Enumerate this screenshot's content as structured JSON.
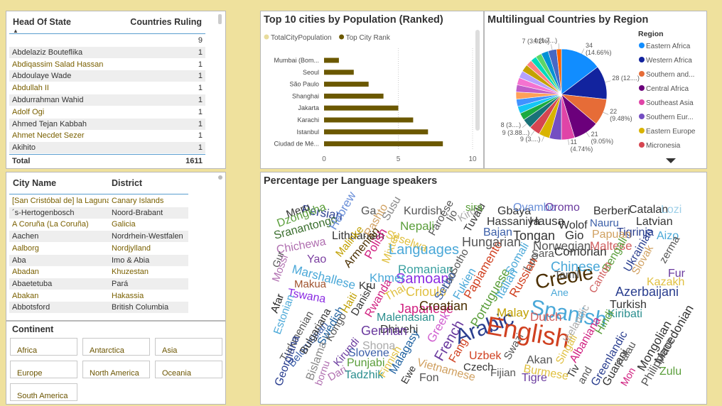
{
  "head_of_state_table": {
    "columns": [
      "Head Of State",
      "Countries Ruling"
    ],
    "rows": [
      [
        null,
        9
      ],
      [
        "Abdelaziz Bouteflika",
        1
      ],
      [
        "Abdiqassim Salad Hassan",
        1
      ],
      [
        "Abdoulaye Wade",
        1
      ],
      [
        "Abdullah II",
        1
      ],
      [
        "Abdurrahman Wahid",
        1
      ],
      [
        "Adolf Ogi",
        1
      ],
      [
        "Ahmed Tejan Kabbah",
        1
      ],
      [
        "Ahmet Necdet Sezer",
        1
      ],
      [
        "Akihito",
        1
      ]
    ],
    "total": [
      "Total",
      1611
    ]
  },
  "city_table": {
    "columns": [
      "City Name",
      "District"
    ],
    "rows": [
      [
        "[San Cristóbal de] la Laguna",
        "Canary Islands"
      ],
      [
        "´s-Hertogenbosch",
        "Noord-Brabant"
      ],
      [
        "A Coruña (La Coruña)",
        "Galicia"
      ],
      [
        "Aachen",
        "Nordrhein-Westfalen"
      ],
      [
        "Aalborg",
        "Nordjylland"
      ],
      [
        "Aba",
        "Imo & Abia"
      ],
      [
        "Abadan",
        "Khuzestan"
      ],
      [
        "Abaetetuba",
        "Pará"
      ],
      [
        "Abakan",
        "Hakassia"
      ],
      [
        "Abbotsford",
        "British Columbia"
      ]
    ]
  },
  "continent_slicer": {
    "title": "Continent",
    "options": [
      "Africa",
      "Antarctica",
      "Asia",
      "Europe",
      "North America",
      "Oceania",
      "South America"
    ]
  },
  "chart_data": [
    {
      "type": "bar",
      "orientation": "horizontal",
      "title": "Top 10 cities by Population (Ranked)",
      "categories": [
        "Mumbai (Bom...",
        "Seoul",
        "São Paulo",
        "Shanghai",
        "Jakarta",
        "Karachi",
        "Istanbul",
        "Ciudad de Mé..."
      ],
      "series": [
        {
          "name": "TotalCityPopulation",
          "color": "#e8dc9c",
          "values": [
            null,
            null,
            null,
            null,
            null,
            null,
            null,
            null
          ]
        },
        {
          "name": "Top City Rank",
          "color": "#6b5800",
          "values": [
            1,
            2,
            3,
            4,
            5,
            6,
            7,
            8
          ]
        }
      ],
      "xlim": [
        0,
        10
      ],
      "xticks": [
        0,
        5,
        10
      ],
      "grid": true
    },
    {
      "type": "pie",
      "title": "Multilingual Countries by Region",
      "legend_title": "Region",
      "categories": [
        "Eastern Africa",
        "Western Africa",
        "Southern and...",
        "Central Africa",
        "Southeast Asia",
        "Southern Eur...",
        "Eastern Europe",
        "Micronesia",
        null,
        null,
        null,
        null,
        null,
        null,
        null,
        null,
        null,
        null,
        null,
        null,
        null,
        null,
        null
      ],
      "values": [
        34,
        28,
        22,
        21,
        11,
        10,
        9,
        9,
        8,
        6,
        6,
        6,
        6,
        6,
        6,
        6,
        6,
        5,
        5,
        5,
        6,
        7,
        4
      ],
      "value_labels": [
        "34 (14.66%)",
        "28 (12....)",
        "22 (9.48%)",
        "21 (9.05%)",
        "11 (4.74%)",
        null,
        "9 (3....)",
        "9 (3.88...)",
        "8 (3....)",
        null,
        null,
        null,
        null,
        null,
        null,
        null,
        null,
        null,
        null,
        null,
        null,
        "7 (3.02%)",
        "4 (1.7...)"
      ],
      "colors": [
        "#118dff",
        "#12239e",
        "#e66c37",
        "#6b007b",
        "#e044a7",
        "#744ec2",
        "#d9b300",
        "#d64550",
        "#197278",
        "#1aab40",
        "#15c6f4",
        "#4092ff",
        "#ffa058",
        "#be5dc9",
        "#f472d0",
        "#b5a1ff",
        "#c4a200",
        "#ff8080",
        "#00dbbc",
        "#5bd667",
        "#0091d5",
        "#4668c5",
        "#ff6300"
      ]
    }
  ],
  "word_cloud": {
    "title": "Percentage per Language speakers",
    "words": [
      {
        "text": "Persian",
        "color": "#2a3e8f"
      },
      {
        "text": "Meru",
        "color": "#333333"
      },
      {
        "text": "Dzongkha",
        "color": "#5a9e3a"
      },
      {
        "text": "Sranantongo",
        "color": "#3a6e2e"
      },
      {
        "text": "Chichewa",
        "color": "#b06fb0"
      },
      {
        "text": "Gur",
        "color": "#555555"
      },
      {
        "text": "Mossi",
        "color": "#b06fb0"
      },
      {
        "text": "Yao",
        "color": "#7b3fa0"
      },
      {
        "text": "Marshallese",
        "color": "#4aa8d8"
      },
      {
        "text": "Makua",
        "color": "#a0522d"
      },
      {
        "text": "Tswana",
        "color": "#8a2be2"
      },
      {
        "text": "Afar",
        "color": "#222222"
      },
      {
        "text": "Estonian",
        "color": "#4aa8d8"
      },
      {
        "text": "Turkmenian",
        "color": "#555555"
      },
      {
        "text": "Belorussian",
        "color": "#3a5ea8"
      },
      {
        "text": "Georgiana",
        "color": "#2a3e8f"
      },
      {
        "text": "Bulgariana",
        "color": "#333333"
      },
      {
        "text": "Swedish",
        "color": "#1a5e9e"
      },
      {
        "text": "Kongo",
        "color": "#555555"
      },
      {
        "text": "Bislama",
        "color": "#888888"
      },
      {
        "text": "bornu",
        "color": "#b06fb0"
      },
      {
        "text": "Dari",
        "color": "#b06fb0"
      },
      {
        "text": "Kirundi",
        "color": "#6a3a9e"
      },
      {
        "text": "Hebrew",
        "color": "#6a8fd8"
      },
      {
        "text": "Lithuanian",
        "color": "#333333"
      },
      {
        "text": "Ga",
        "color": "#555555"
      },
      {
        "text": "Malinke",
        "color": "#c0a000"
      },
      {
        "text": "Pashto",
        "color": "#d0a060"
      },
      {
        "text": "Armenian",
        "color": "#4a2e00"
      },
      {
        "text": "Polish",
        "color": "#d02080"
      },
      {
        "text": "Mixtec",
        "color": "#e0c040"
      },
      {
        "text": "Susu",
        "color": "#888888"
      },
      {
        "text": "Kurdish",
        "color": "#555555"
      },
      {
        "text": "Nepali",
        "color": "#5a9e3a"
      },
      {
        "text": "Seselwa",
        "color": "#e0c040"
      },
      {
        "text": "Languages",
        "color": "#4aa8d8"
      },
      {
        "text": "Romanian",
        "color": "#3aa0a0"
      },
      {
        "text": "Samoan",
        "color": "#8a2be2"
      },
      {
        "text": "Khmer",
        "color": "#4aa8d8"
      },
      {
        "text": "Kru",
        "color": "#333333"
      },
      {
        "text": "Haiti",
        "color": "#c0a000"
      },
      {
        "text": "Danish",
        "color": "#333333"
      },
      {
        "text": "Rwanda",
        "color": "#d02080"
      },
      {
        "text": "Thai",
        "color": "#e0c040"
      },
      {
        "text": "Crioulo",
        "color": "#e0c040"
      },
      {
        "text": "Japanese",
        "color": "#d02080"
      },
      {
        "text": "Croatian",
        "color": "#4a2e00"
      },
      {
        "text": "Malenasian",
        "color": "#2a8e8e"
      },
      {
        "text": "Dhivehi",
        "color": "#333333"
      },
      {
        "text": "German",
        "color": "#6a3a9e"
      },
      {
        "text": "Shona",
        "color": "#aaaaaa"
      },
      {
        "text": "Slovene",
        "color": "#3a5ea8"
      },
      {
        "text": "Punjabi",
        "color": "#5a9e3a"
      },
      {
        "text": "Tadzhik",
        "color": "#2a8e8e"
      },
      {
        "text": "Finnish",
        "color": "#e0c040"
      },
      {
        "text": "Malagasy",
        "color": "#1a5e9e"
      },
      {
        "text": "Ewe",
        "color": "#333333"
      },
      {
        "text": "Fon",
        "color": "#555555"
      },
      {
        "text": "Vietnamese",
        "color": "#d0a060"
      },
      {
        "text": "Greek",
        "color": "#d060d0"
      },
      {
        "text": "French",
        "color": "#6a3a9e"
      },
      {
        "text": "Fang",
        "color": "#d04020"
      },
      {
        "text": "Uzbek",
        "color": "#d04020"
      },
      {
        "text": "Czech",
        "color": "#333333"
      },
      {
        "text": "Fijian",
        "color": "#555555"
      },
      {
        "text": "Tigre",
        "color": "#6a3a9e"
      },
      {
        "text": "Akan",
        "color": "#555555"
      },
      {
        "text": "Swazi",
        "color": "#555555"
      },
      {
        "text": "Arabic",
        "color": "#2a3e8f"
      },
      {
        "text": "English",
        "color": "#d04020"
      },
      {
        "text": "Spanish",
        "color": "#4aa8d8"
      },
      {
        "text": "Creole",
        "color": "#4a2e00"
      },
      {
        "text": "Dutch",
        "color": "#d06060"
      },
      {
        "text": "Malay",
        "color": "#c0a000"
      },
      {
        "text": "Portuguese",
        "color": "#5a9e3a"
      },
      {
        "text": "Papiamento",
        "color": "#d04020"
      },
      {
        "text": "Italian",
        "color": "#4aa8d8"
      },
      {
        "text": "Russian",
        "color": "#d04020"
      },
      {
        "text": "Somali",
        "color": "#4aa8d8"
      },
      {
        "text": "Luo",
        "color": "#555555"
      },
      {
        "text": "Sara",
        "color": "#555555"
      },
      {
        "text": "Tamil",
        "color": "#555555"
      },
      {
        "text": "Ane",
        "color": "#4aa8d8"
      },
      {
        "text": "Fukien",
        "color": "#4aa8d8"
      },
      {
        "text": "Lao",
        "color": "#555555"
      },
      {
        "text": "Serbo",
        "color": "#3a5ea8"
      },
      {
        "text": "Sotho",
        "color": "#555555"
      },
      {
        "text": "Hungarian",
        "color": "#555555"
      },
      {
        "text": "Gbaya",
        "color": "#333333"
      },
      {
        "text": "Hausa",
        "color": "#333333"
      },
      {
        "text": "Hassaniya",
        "color": "#333333"
      },
      {
        "text": "Tongan",
        "color": "#333333"
      },
      {
        "text": "Bajan",
        "color": "#3a5ea8"
      },
      {
        "text": "Wolof",
        "color": "#333333"
      },
      {
        "text": "Ovambo",
        "color": "#6a8fd8"
      },
      {
        "text": "Oromo",
        "color": "#6a3a9e"
      },
      {
        "text": "Gio",
        "color": "#333333"
      },
      {
        "text": "Norwegian",
        "color": "#555555"
      },
      {
        "text": "Comorian",
        "color": "#333333"
      },
      {
        "text": "Chinese",
        "color": "#4aa8d8"
      },
      {
        "text": "Berberi",
        "color": "#333333"
      },
      {
        "text": "Nauru",
        "color": "#3a5ea8"
      },
      {
        "text": "Tigrinja",
        "color": "#2a3e8f"
      },
      {
        "text": "Papuan",
        "color": "#d0a060"
      },
      {
        "text": "Maltese",
        "color": "#d06060"
      },
      {
        "text": "Catalan",
        "color": "#333333"
      },
      {
        "text": "Latvian",
        "color": "#333333"
      },
      {
        "text": "Lozi",
        "color": "#9ecfe8"
      },
      {
        "text": "Aizo",
        "color": "#4aa8d8"
      },
      {
        "text": "Ukrainian",
        "color": "#2a3e8f"
      },
      {
        "text": "Slovak",
        "color": "#d0a060"
      },
      {
        "text": "zerma",
        "color": "#555555"
      },
      {
        "text": "Fur",
        "color": "#6a3a9e"
      },
      {
        "text": "Kazakh",
        "color": "#e0c040"
      },
      {
        "text": "Bengali",
        "color": "#5a9e3a"
      },
      {
        "text": "Canton",
        "color": "#d06060"
      },
      {
        "text": "Azerbaijani",
        "color": "#2a3e8f"
      },
      {
        "text": "Turkish",
        "color": "#333333"
      },
      {
        "text": "Kiribati",
        "color": "#2a8e8e"
      },
      {
        "text": "Hindi",
        "color": "#5a9e3a"
      },
      {
        "text": "Albaniana",
        "color": "#d02080"
      },
      {
        "text": "Icelandic",
        "color": "#aaaaaa"
      },
      {
        "text": "Singali",
        "color": "#e0c040"
      },
      {
        "text": "Tiv",
        "color": "#333333"
      },
      {
        "text": "and",
        "color": "#555555"
      },
      {
        "text": "Greenlandic",
        "color": "#2a3e8f"
      },
      {
        "text": "Guarani",
        "color": "#333333"
      },
      {
        "text": "Palau",
        "color": "#555555"
      },
      {
        "text": "Mon",
        "color": "#d02080"
      },
      {
        "text": "Mongolian",
        "color": "#333333"
      },
      {
        "text": "Macedonian",
        "color": "#333333"
      },
      {
        "text": "Philippene",
        "color": "#555555"
      },
      {
        "text": "Zulu",
        "color": "#5a9e3a"
      },
      {
        "text": "Faroese",
        "color": "#555555"
      },
      {
        "text": "Ijo",
        "color": "#555555"
      },
      {
        "text": "Kirgiz",
        "color": "#aaaaaa"
      },
      {
        "text": "Tuvalu",
        "color": "#333333"
      },
      {
        "text": "sira",
        "color": "#5a9e3a"
      },
      {
        "text": "Burmese",
        "color": "#e0c040"
      }
    ]
  }
}
